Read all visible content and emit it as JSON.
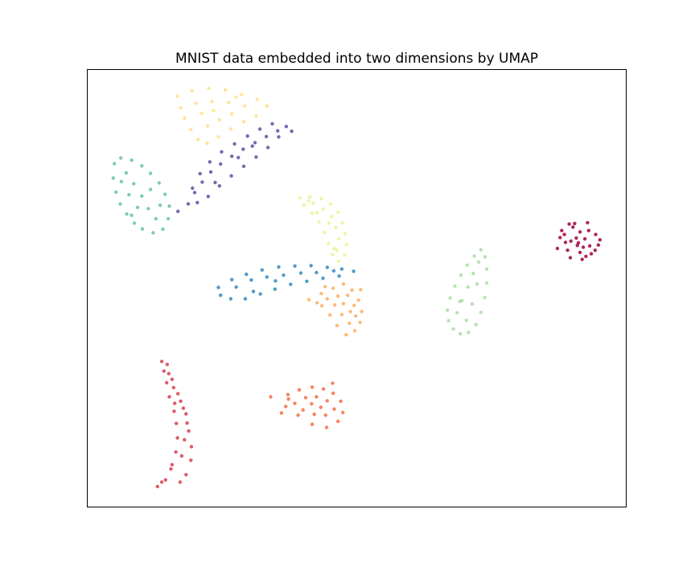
{
  "chart_data": {
    "type": "scatter",
    "title": "MNIST data embedded into two dimensions by UMAP",
    "xlabel": "",
    "ylabel": "",
    "xticks": [],
    "yticks": [],
    "grid": false,
    "legend": false,
    "xlim": [
      0,
      100
    ],
    "ylim": [
      0,
      100
    ],
    "series": [
      {
        "color": "#9e0142",
        "points": [
          [
            91.2,
            60.3
          ],
          [
            91.5,
            62.8
          ],
          [
            92.6,
            57.2
          ],
          [
            89.8,
            60.7
          ],
          [
            93.3,
            59.6
          ],
          [
            88.6,
            62.2
          ],
          [
            91.5,
            58.1
          ],
          [
            94.9,
            59.8
          ],
          [
            90.2,
            63.9
          ],
          [
            87.3,
            59.0
          ],
          [
            93.1,
            63.1
          ],
          [
            92.4,
            61.2
          ],
          [
            89.2,
            58.6
          ],
          [
            94.4,
            62.2
          ],
          [
            91.9,
            56.5
          ],
          [
            88.8,
            60.4
          ],
          [
            90.5,
            64.7
          ],
          [
            93.6,
            57.8
          ],
          [
            87.8,
            61.5
          ],
          [
            92.1,
            59.3
          ],
          [
            95.2,
            61.0
          ],
          [
            89.7,
            56.9
          ],
          [
            90.8,
            61.4
          ],
          [
            92.9,
            64.9
          ],
          [
            88.1,
            63.1
          ],
          [
            94.3,
            58.6
          ],
          [
            91.0,
            59.7
          ],
          [
            89.5,
            64.6
          ]
        ]
      },
      {
        "color": "#d53e4f",
        "points": [
          [
            13.9,
            33.2
          ],
          [
            14.3,
            31.0
          ],
          [
            14.8,
            28.3
          ],
          [
            15.3,
            25.1
          ],
          [
            16.2,
            21.8
          ],
          [
            16.6,
            19.0
          ],
          [
            16.8,
            15.7
          ],
          [
            16.5,
            12.5
          ],
          [
            15.8,
            9.6
          ],
          [
            14.6,
            6.1
          ],
          [
            13.1,
            4.6
          ],
          [
            15.2,
            30.4
          ],
          [
            16.1,
            27.2
          ],
          [
            17.4,
            24.1
          ],
          [
            18.4,
            21.2
          ],
          [
            18.9,
            17.3
          ],
          [
            19.4,
            13.7
          ],
          [
            19.3,
            10.6
          ],
          [
            18.4,
            7.3
          ],
          [
            17.3,
            5.6
          ],
          [
            14.9,
            32.5
          ],
          [
            15.8,
            29.1
          ],
          [
            16.9,
            25.8
          ],
          [
            17.9,
            22.5
          ],
          [
            18.6,
            19.1
          ],
          [
            18.1,
            15.3
          ],
          [
            17.6,
            11.6
          ],
          [
            15.6,
            8.6
          ],
          [
            13.9,
            5.6
          ],
          [
            16.3,
            23.6
          ]
        ]
      },
      {
        "color": "#f46d43",
        "points": [
          [
            37.3,
            25.6
          ],
          [
            39.4,
            26.7
          ],
          [
            41.8,
            27.3
          ],
          [
            43.9,
            26.9
          ],
          [
            45.7,
            25.9
          ],
          [
            47.1,
            24.1
          ],
          [
            47.5,
            21.5
          ],
          [
            46.6,
            19.5
          ],
          [
            44.5,
            18.1
          ],
          [
            41.8,
            18.8
          ],
          [
            39.2,
            20.9
          ],
          [
            36.9,
            22.9
          ],
          [
            38.6,
            23.6
          ],
          [
            40.6,
            24.9
          ],
          [
            42.6,
            25.1
          ],
          [
            44.6,
            24.2
          ],
          [
            45.9,
            22.3
          ],
          [
            44.3,
            20.9
          ],
          [
            42.2,
            21.1
          ],
          [
            40.1,
            22.1
          ],
          [
            41.7,
            23.5
          ],
          [
            43.4,
            22.7
          ],
          [
            37.4,
            24.6
          ],
          [
            45.6,
            28.2
          ],
          [
            34.1,
            25.1
          ],
          [
            36.1,
            21.4
          ]
        ]
      },
      {
        "color": "#fdae61",
        "points": [
          [
            41.2,
            47.3
          ],
          [
            43.5,
            48.7
          ],
          [
            45.7,
            49.9
          ],
          [
            47.6,
            50.9
          ],
          [
            49.2,
            49.5
          ],
          [
            50.4,
            47.2
          ],
          [
            51.0,
            44.6
          ],
          [
            50.7,
            42.1
          ],
          [
            49.7,
            40.2
          ],
          [
            48.1,
            39.3
          ],
          [
            46.4,
            41.4
          ],
          [
            45.1,
            43.8
          ],
          [
            43.6,
            45.9
          ],
          [
            42.7,
            46.6
          ],
          [
            44.6,
            47.5
          ],
          [
            46.6,
            48.1
          ],
          [
            48.4,
            48.3
          ],
          [
            49.6,
            46.0
          ],
          [
            49.9,
            43.6
          ],
          [
            48.7,
            41.9
          ],
          [
            47.3,
            43.9
          ],
          [
            46.0,
            46.1
          ],
          [
            47.6,
            46.4
          ],
          [
            48.9,
            44.6
          ],
          [
            50.8,
            49.6
          ],
          [
            44.2,
            50.3
          ]
        ]
      },
      {
        "color": "#fee08b",
        "points": [
          [
            16.8,
            93.8
          ],
          [
            19.5,
            95.1
          ],
          [
            22.6,
            95.6
          ],
          [
            25.7,
            95.2
          ],
          [
            28.7,
            94.2
          ],
          [
            31.6,
            93.1
          ],
          [
            33.4,
            91.6
          ],
          [
            31.4,
            89.3
          ],
          [
            29.1,
            88.0
          ],
          [
            26.7,
            86.3
          ],
          [
            24.4,
            84.5
          ],
          [
            22.3,
            83.1
          ],
          [
            20.6,
            83.9
          ],
          [
            19.3,
            86.2
          ],
          [
            18.1,
            88.8
          ],
          [
            17.4,
            91.2
          ],
          [
            20.2,
            92.2
          ],
          [
            23.2,
            92.6
          ],
          [
            26.3,
            92.4
          ],
          [
            29.3,
            91.6
          ],
          [
            26.9,
            89.8
          ],
          [
            24.6,
            88.4
          ],
          [
            22.4,
            87.0
          ],
          [
            21.3,
            89.9
          ],
          [
            23.5,
            90.5
          ],
          [
            27.7,
            93.6
          ]
        ]
      },
      {
        "color": "#e6f598",
        "points": [
          [
            39.5,
            70.6
          ],
          [
            41.4,
            70.8
          ],
          [
            43.5,
            70.4
          ],
          [
            45.2,
            69.2
          ],
          [
            46.6,
            67.3
          ],
          [
            47.4,
            64.9
          ],
          [
            47.9,
            62.4
          ],
          [
            48.2,
            59.9
          ],
          [
            47.8,
            57.5
          ],
          [
            46.7,
            56.1
          ],
          [
            45.6,
            57.6
          ],
          [
            44.8,
            60.2
          ],
          [
            44.1,
            62.7
          ],
          [
            43.1,
            65.0
          ],
          [
            41.8,
            67.1
          ],
          [
            40.3,
            68.9
          ],
          [
            42.0,
            69.3
          ],
          [
            43.9,
            68.0
          ],
          [
            45.4,
            66.3
          ],
          [
            46.2,
            63.8
          ],
          [
            46.7,
            61.2
          ],
          [
            45.9,
            59.0
          ],
          [
            44.9,
            64.8
          ],
          [
            42.7,
            67.2
          ],
          [
            46.4,
            58.6
          ],
          [
            41.2,
            69.9
          ]
        ]
      },
      {
        "color": "#abdda4",
        "points": [
          [
            66.9,
            44.9
          ],
          [
            67.4,
            47.7
          ],
          [
            68.3,
            50.4
          ],
          [
            69.4,
            52.9
          ],
          [
            70.6,
            55.2
          ],
          [
            71.9,
            57.3
          ],
          [
            73.1,
            58.7
          ],
          [
            73.9,
            57.1
          ],
          [
            74.2,
            54.3
          ],
          [
            74.2,
            51.1
          ],
          [
            73.8,
            47.8
          ],
          [
            73.1,
            44.4
          ],
          [
            72.2,
            41.6
          ],
          [
            70.8,
            39.8
          ],
          [
            69.3,
            39.5
          ],
          [
            68.0,
            40.6
          ],
          [
            67.1,
            42.5
          ],
          [
            68.7,
            44.3
          ],
          [
            69.6,
            47.1
          ],
          [
            70.7,
            50.2
          ],
          [
            71.7,
            53.3
          ],
          [
            72.7,
            55.9
          ],
          [
            72.4,
            50.9
          ],
          [
            71.5,
            46.3
          ],
          [
            70.4,
            42.6
          ],
          [
            69.2,
            46.9
          ]
        ]
      },
      {
        "color": "#66c2a5",
        "points": [
          [
            5.1,
            78.4
          ],
          [
            4.9,
            75.1
          ],
          [
            5.4,
            71.9
          ],
          [
            6.2,
            69.2
          ],
          [
            7.4,
            66.9
          ],
          [
            8.8,
            64.8
          ],
          [
            10.3,
            63.5
          ],
          [
            12.3,
            62.6
          ],
          [
            14.1,
            63.4
          ],
          [
            15.1,
            65.8
          ],
          [
            15.3,
            68.7
          ],
          [
            14.5,
            71.4
          ],
          [
            13.4,
            74.0
          ],
          [
            11.8,
            76.2
          ],
          [
            10.2,
            77.9
          ],
          [
            8.3,
            79.2
          ],
          [
            6.3,
            79.7
          ],
          [
            7.3,
            76.3
          ],
          [
            8.7,
            73.8
          ],
          [
            10.2,
            71.0
          ],
          [
            11.4,
            68.1
          ],
          [
            12.8,
            65.8
          ],
          [
            9.4,
            68.4
          ],
          [
            7.8,
            71.3
          ],
          [
            6.4,
            74.3
          ],
          [
            11.8,
            72.5
          ],
          [
            8.3,
            66.6
          ],
          [
            13.6,
            68.9
          ]
        ]
      },
      {
        "color": "#3288bd",
        "points": [
          [
            24.4,
            50.1
          ],
          [
            26.9,
            51.9
          ],
          [
            29.6,
            53.1
          ],
          [
            32.5,
            54.1
          ],
          [
            35.6,
            54.8
          ],
          [
            38.6,
            55.0
          ],
          [
            41.6,
            55.1
          ],
          [
            44.6,
            54.7
          ],
          [
            47.3,
            54.3
          ],
          [
            49.5,
            53.8
          ],
          [
            46.8,
            52.7
          ],
          [
            43.8,
            52.2
          ],
          [
            40.8,
            51.5
          ],
          [
            37.8,
            50.8
          ],
          [
            34.9,
            49.7
          ],
          [
            32.2,
            48.6
          ],
          [
            29.4,
            47.5
          ],
          [
            26.7,
            47.5
          ],
          [
            24.8,
            48.3
          ],
          [
            27.7,
            50.2
          ],
          [
            30.5,
            51.8
          ],
          [
            33.4,
            52.5
          ],
          [
            36.5,
            52.9
          ],
          [
            39.7,
            53.4
          ],
          [
            42.6,
            53.5
          ],
          [
            45.8,
            53.9
          ],
          [
            30.9,
            49.2
          ],
          [
            35.0,
            51.6
          ]
        ]
      },
      {
        "color": "#5e4fa2",
        "points": [
          [
            18.8,
            69.2
          ],
          [
            20.0,
            71.8
          ],
          [
            21.4,
            74.2
          ],
          [
            23.0,
            76.5
          ],
          [
            24.8,
            78.3
          ],
          [
            26.9,
            80.1
          ],
          [
            29.0,
            81.7
          ],
          [
            31.2,
            83.2
          ],
          [
            33.3,
            84.6
          ],
          [
            35.4,
            85.9
          ],
          [
            37.0,
            86.9
          ],
          [
            35.6,
            84.5
          ],
          [
            33.6,
            82.1
          ],
          [
            31.4,
            79.9
          ],
          [
            29.1,
            77.8
          ],
          [
            26.8,
            75.6
          ],
          [
            24.6,
            73.3
          ],
          [
            22.5,
            70.9
          ],
          [
            20.5,
            69.5
          ],
          [
            19.6,
            72.8
          ],
          [
            21.0,
            76.1
          ],
          [
            22.8,
            78.8
          ],
          [
            25.0,
            81.1
          ],
          [
            27.4,
            82.9
          ],
          [
            29.8,
            84.7
          ],
          [
            32.1,
            86.3
          ],
          [
            34.4,
            87.5
          ],
          [
            16.9,
            67.5
          ],
          [
            38.0,
            85.8
          ],
          [
            23.8,
            74.1
          ],
          [
            28.1,
            79.8
          ],
          [
            30.7,
            82.4
          ]
        ]
      }
    ]
  }
}
